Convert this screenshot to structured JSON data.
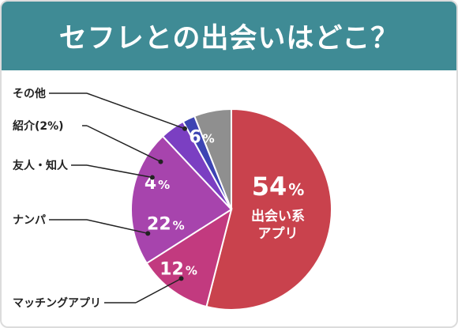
{
  "chart_data": {
    "type": "pie",
    "title": "セフレとの出会いはどこ？",
    "slices": [
      {
        "label": "出会い系アプリ",
        "inner_lines": [
          "出会い系",
          "アプリ"
        ],
        "value": 54,
        "display": "54",
        "unit": "%",
        "color": "#c9424d",
        "outside_label": ""
      },
      {
        "label": "マッチングアプリ",
        "inner_lines": [],
        "value": 12,
        "display": "12",
        "unit": "%",
        "color": "#c23a7f",
        "outside_label": "マッチングアプリ"
      },
      {
        "label": "ナンパ",
        "inner_lines": [],
        "value": 22,
        "display": "22",
        "unit": "%",
        "color": "#a744ad",
        "outside_label": "ナンパ"
      },
      {
        "label": "友人・知人",
        "inner_lines": [],
        "value": 4,
        "display": "4",
        "unit": "%",
        "color": "#7b3fc2",
        "outside_label": "友人・知人"
      },
      {
        "label": "紹介",
        "inner_lines": [],
        "value": 2,
        "display": "",
        "unit": "",
        "color": "#3d44b3",
        "outside_label": "紹介(2%)"
      },
      {
        "label": "その他",
        "inner_lines": [],
        "value": 6,
        "display": "6",
        "unit": "%",
        "color": "#8f8f8f",
        "outside_label": "その他"
      }
    ]
  }
}
